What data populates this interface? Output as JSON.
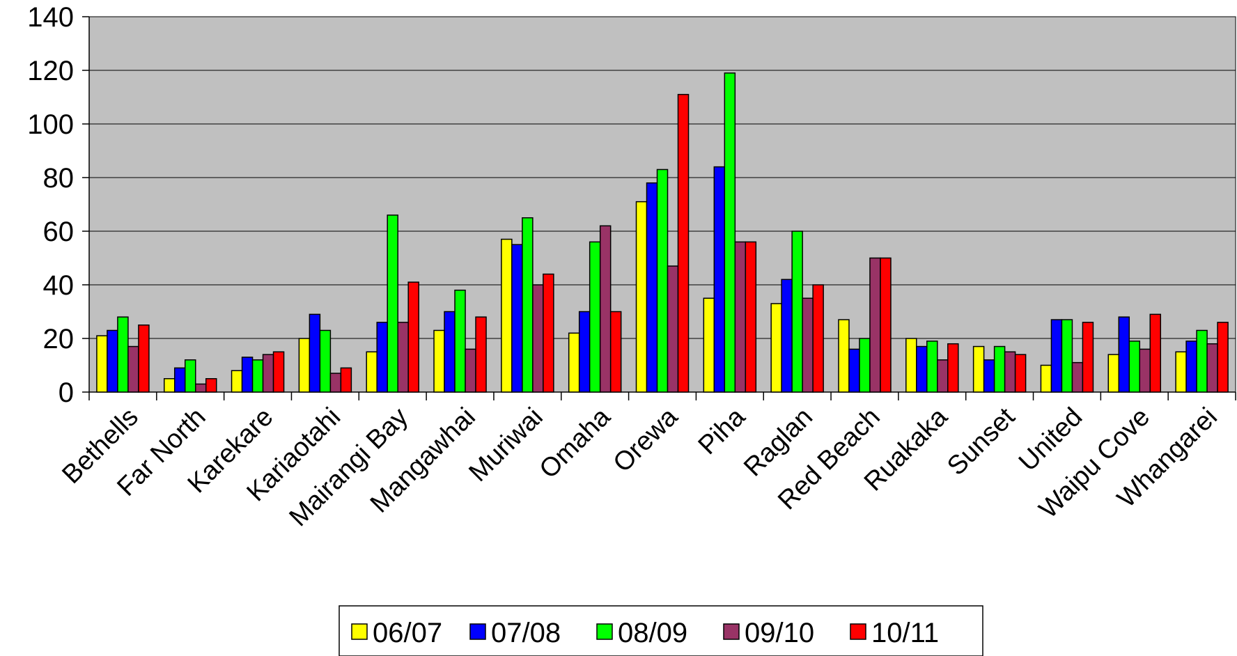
{
  "chart_data": {
    "type": "bar",
    "categories": [
      "Bethells",
      "Far North",
      "Karekare",
      "Kariaotahi",
      "Mairangi Bay",
      "Mangawhai",
      "Muriwai",
      "Omaha",
      "Orewa",
      "Piha",
      "Raglan",
      "Red Beach",
      "Ruakaka",
      "Sunset",
      "United",
      "Waipu Cove",
      "Whangarei"
    ],
    "series": [
      {
        "name": "06/07",
        "color": "#ffff00",
        "values": [
          21,
          5,
          8,
          20,
          15,
          23,
          57,
          22,
          71,
          35,
          33,
          27,
          20,
          17,
          10,
          14,
          15
        ]
      },
      {
        "name": "07/08",
        "color": "#0000ff",
        "values": [
          23,
          9,
          13,
          29,
          26,
          30,
          55,
          30,
          78,
          84,
          42,
          16,
          17,
          12,
          27,
          28,
          19
        ]
      },
      {
        "name": "08/09",
        "color": "#00ff00",
        "values": [
          28,
          12,
          12,
          23,
          66,
          38,
          65,
          56,
          83,
          119,
          60,
          20,
          19,
          17,
          27,
          19,
          23
        ]
      },
      {
        "name": "09/10",
        "color": "#993366",
        "values": [
          17,
          3,
          14,
          7,
          26,
          16,
          40,
          62,
          47,
          56,
          35,
          50,
          12,
          15,
          11,
          16,
          18
        ]
      },
      {
        "name": "10/11",
        "color": "#ff0000",
        "values": [
          25,
          5,
          15,
          9,
          41,
          28,
          44,
          30,
          111,
          56,
          40,
          50,
          18,
          14,
          26,
          29,
          26
        ]
      }
    ],
    "ylim": [
      0,
      140
    ],
    "yticks": [
      0,
      20,
      40,
      60,
      80,
      100,
      120,
      140
    ],
    "title": "",
    "xlabel": "",
    "ylabel": "",
    "grid": true,
    "plot_background": "#c0c0c0",
    "legend_position": "bottom"
  }
}
